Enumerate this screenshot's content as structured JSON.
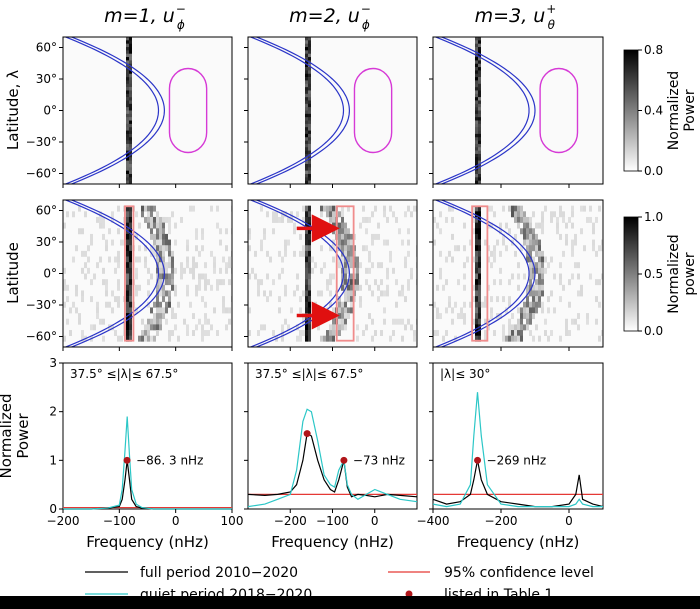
{
  "chart_data": {
    "type": "multi-panel",
    "column_titles": [
      {
        "m": "m=1,",
        "var": "u",
        "sup": "−",
        "sub": "ϕ"
      },
      {
        "m": "m=2,",
        "var": "u",
        "sup": "−",
        "sub": "ϕ"
      },
      {
        "m": "m=3,",
        "var": "u",
        "sup": "+",
        "sub": "θ"
      }
    ],
    "row_labels": {
      "top": "Latitude, λ",
      "middle": "Latitude",
      "bottom": "Normalized Power"
    },
    "lat_ticks": [
      "60°",
      "30°",
      "0°",
      "−30°",
      "−60°"
    ],
    "lat_tick_values": [
      60,
      30,
      0,
      -30,
      -60
    ],
    "colorbars": [
      {
        "label": "Normalized Power",
        "ticks": [
          "0.8",
          "0.4",
          "0.0"
        ],
        "tick_values": [
          0.8,
          0.4,
          0.0
        ],
        "max": 0.8
      },
      {
        "label": "Normalized power",
        "ticks": [
          "1.0",
          "0.5",
          "0.0"
        ],
        "tick_values": [
          1.0,
          0.5,
          0.0
        ],
        "max": 1.0
      }
    ],
    "columns": [
      {
        "xlim": [
          -200,
          100
        ],
        "xticks": [
          "−200",
          "−100",
          "0",
          "100"
        ],
        "xtick_values": [
          -200,
          -100,
          0,
          100
        ],
        "curve_shift": -75,
        "curve_scale": 3.5,
        "rect_mid": [
          -90,
          -75
        ],
        "line_peak_freq": -86.3,
        "annotation": "37.5° ≤|λ|≤ 67.5°",
        "ylim": [
          0,
          3
        ],
        "yticks": [
          "0",
          "1",
          "2",
          "3"
        ],
        "ytick_values": [
          0,
          1,
          2,
          3
        ],
        "peak_label": "−86. 3 nHz",
        "peak_marker": {
          "x": -86.3,
          "y": 1.0
        },
        "confidence_level": 0.03,
        "series": [
          {
            "name": "full period 2010−2020",
            "x": [
              -200,
              -150,
              -120,
              -100,
              -95,
              -90,
              -86,
              -82,
              -78,
              -70,
              -60,
              -40,
              -20,
              0,
              50,
              100
            ],
            "y": [
              0,
              0,
              0.02,
              0.05,
              0.2,
              0.6,
              1.0,
              0.6,
              0.2,
              0.05,
              0.02,
              0,
              0,
              0,
              0,
              0
            ]
          },
          {
            "name": "quiet period 2018−2020",
            "x": [
              -200,
              -150,
              -120,
              -100,
              -95,
              -90,
              -86,
              -82,
              -78,
              -70,
              -60,
              -40,
              -20,
              0,
              50,
              100
            ],
            "y": [
              0,
              0,
              0.02,
              0.08,
              0.4,
              1.2,
              1.9,
              1.1,
              0.4,
              0.1,
              0.03,
              0,
              0,
              0,
              0,
              0
            ]
          }
        ]
      },
      {
        "xlim": [
          -300,
          100
        ],
        "xticks": [
          "−200",
          "−100",
          "0"
        ],
        "xtick_values": [
          -200,
          -100,
          0
        ],
        "curve_shift": -150,
        "curve_scale": 5.3,
        "rect_mid": [
          -90,
          -50
        ],
        "line_peak_freq": -160,
        "arrow_lats": [
          43,
          -40
        ],
        "annotation": "37.5° ≤|λ|≤ 67.5°",
        "ylim": [
          0,
          3
        ],
        "yticks": [],
        "ytick_values": [
          0,
          1,
          2,
          3
        ],
        "peak_label": "−73 nHz",
        "peak_marker": {
          "x": -73,
          "y": 1.0
        },
        "extra_marker": {
          "x": -160,
          "y": 1.55
        },
        "confidence_level": 0.3,
        "series": [
          {
            "name": "full period 2010−2020",
            "x": [
              -300,
              -260,
              -230,
              -200,
              -185,
              -170,
              -160,
              -150,
              -135,
              -120,
              -105,
              -95,
              -85,
              -73,
              -65,
              -55,
              -40,
              -20,
              0,
              30,
              60,
              100
            ],
            "y": [
              0.3,
              0.28,
              0.3,
              0.35,
              0.5,
              1.0,
              1.55,
              1.5,
              1.0,
              0.6,
              0.4,
              0.35,
              0.6,
              1.0,
              0.45,
              0.25,
              0.3,
              0.28,
              0.25,
              0.3,
              0.28,
              0.25
            ]
          },
          {
            "name": "quiet period 2018−2020",
            "x": [
              -300,
              -260,
              -230,
              -200,
              -185,
              -170,
              -160,
              -150,
              -135,
              -120,
              -105,
              -95,
              -85,
              -73,
              -65,
              -55,
              -40,
              -20,
              0,
              30,
              60,
              100
            ],
            "y": [
              0.05,
              0.1,
              0.2,
              0.3,
              0.8,
              1.8,
              2.05,
              2.0,
              1.4,
              0.7,
              0.5,
              0.45,
              0.8,
              1.0,
              0.5,
              0.3,
              0.2,
              0.3,
              0.4,
              0.3,
              0.2,
              0.15
            ]
          }
        ]
      },
      {
        "xlim": [
          -400,
          100
        ],
        "xticks": [
          "−400",
          "−200",
          "0"
        ],
        "xtick_values": [
          -400,
          -200,
          0
        ],
        "curve_shift": -200,
        "curve_scale": 6.6,
        "rect_mid": [
          -285,
          -240
        ],
        "line_peak_freq": -269,
        "annotation": "|λ|≤ 30°",
        "ylim": [
          0,
          3
        ],
        "yticks": [],
        "ytick_values": [
          0,
          1,
          2,
          3
        ],
        "peak_label": "−269 nHz",
        "peak_marker": {
          "x": -269,
          "y": 1.0
        },
        "confidence_level": 0.3,
        "series": [
          {
            "name": "full period 2010−2020",
            "x": [
              -400,
              -360,
              -320,
              -290,
              -280,
              -269,
              -258,
              -240,
              -200,
              -150,
              -100,
              -50,
              0,
              20,
              30,
              40,
              70,
              100
            ],
            "y": [
              0.2,
              0.1,
              0.15,
              0.3,
              0.6,
              1.0,
              0.6,
              0.3,
              0.15,
              0.1,
              0.05,
              0.05,
              0.1,
              0.3,
              0.7,
              0.2,
              0.1,
              0.05
            ]
          },
          {
            "name": "quiet period 2018−2020",
            "x": [
              -400,
              -360,
              -320,
              -290,
              -280,
              -269,
              -258,
              -240,
              -200,
              -150,
              -100,
              -50,
              0,
              20,
              30,
              40,
              70,
              100
            ],
            "y": [
              0.1,
              0.05,
              0.1,
              0.5,
              1.5,
              2.4,
              1.5,
              0.5,
              0.1,
              0.05,
              0.05,
              0.05,
              0.05,
              0.1,
              0.2,
              0.1,
              0.05,
              0.05
            ]
          }
        ]
      }
    ],
    "xlabel": "Frequency (nHz)",
    "legend": {
      "full": "full period 2010−2020",
      "quiet": "quiet period 2018−2020",
      "conf": "95% confidence level",
      "listed": "listed in Table 1"
    },
    "colors": {
      "full": "#000000",
      "quiet": "#2cc7c7",
      "confidence": "#e53935",
      "curve": "#2b35c8",
      "oval": "#d63ad6",
      "rect": "#f08c8c",
      "arrow": "#e01010",
      "marker": "#b0161a"
    }
  }
}
